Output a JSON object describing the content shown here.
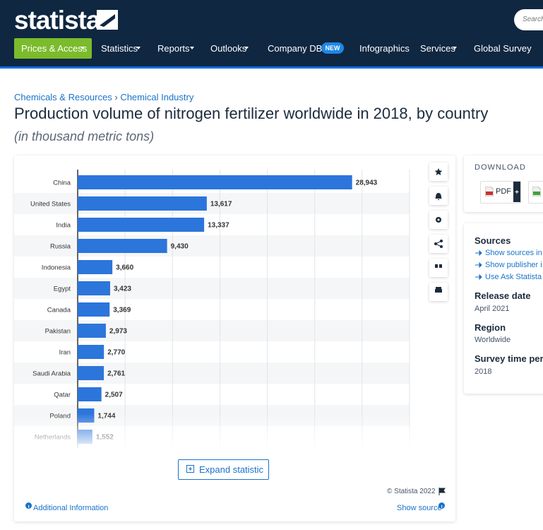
{
  "header": {
    "logo": "statista",
    "search_placeholder": "Search",
    "nav": [
      "Prices & Access",
      "Statistics",
      "Reports",
      "Outlooks",
      "Company DB",
      "Infographics",
      "Services",
      "Global Survey"
    ],
    "badge": "NEW"
  },
  "breadcrumb": [
    "Chemicals & Resources",
    "Chemical Industry"
  ],
  "breadcrumb_separator": "›",
  "chart_data": {
    "type": "bar",
    "orientation": "horizontal",
    "title": "Production volume of nitrogen fertilizer worldwide in 2018, by country",
    "subtitle": "(in thousand metric tons)",
    "categories": [
      "China",
      "United States",
      "India",
      "Russia",
      "Indonesia",
      "Egypt",
      "Canada",
      "Pakistan",
      "Iran",
      "Saudi Arabia",
      "Qatar",
      "Poland",
      "Netherlands"
    ],
    "values": [
      28943,
      13617,
      13337,
      9430,
      3660,
      3423,
      3369,
      2973,
      2770,
      2761,
      2507,
      1744,
      1552
    ],
    "value_labels": [
      "28,943",
      "13,617",
      "13,337",
      "9,430",
      "3,660",
      "3,423",
      "3,369",
      "2,973",
      "2,770",
      "2,761",
      "2,507",
      "1,744",
      "1,552"
    ],
    "color": "#2c75db",
    "xlim": [
      0,
      35000
    ],
    "xticks": [
      0,
      5000,
      10000,
      15000,
      20000,
      25000,
      30000,
      35000
    ],
    "grid": true,
    "copyright": "© Statista 2022"
  },
  "chart_actions": {
    "expand": "Expand statistic",
    "additional_information": "Additional Information",
    "show_source": "Show source"
  },
  "sidebar": {
    "download_title": "DOWNLOAD",
    "download_button": "PDF",
    "sources_title": "Sources",
    "source_links": [
      "Show sources in",
      "Show publisher i",
      "Use Ask Statista"
    ],
    "details": [
      {
        "label": "Release date",
        "value": "April 2021"
      },
      {
        "label": "Region",
        "value": "Worldwide"
      },
      {
        "label": "Survey time peri",
        "value": "2018"
      }
    ]
  }
}
